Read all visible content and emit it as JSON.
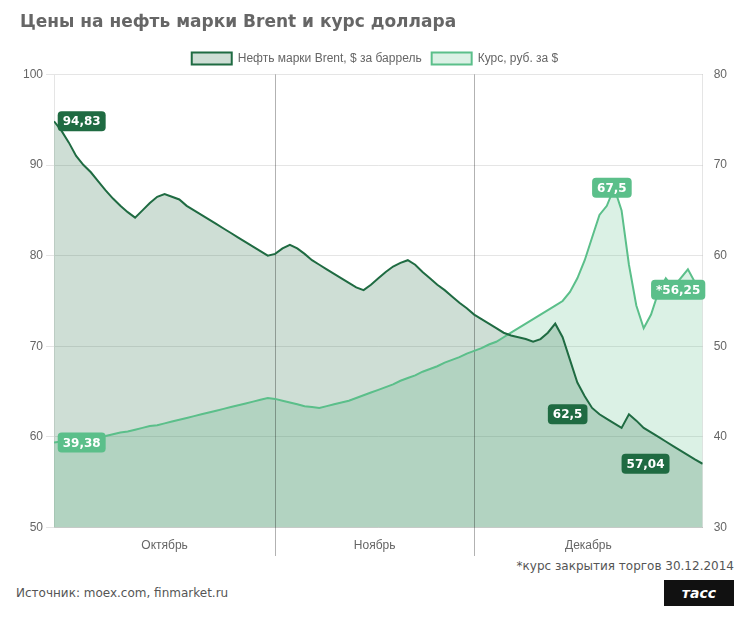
{
  "chart_data": {
    "type": "area",
    "title": "Цены на нефть марки Brent и курс доллара",
    "x": [
      0,
      1,
      2,
      3,
      4,
      5,
      6,
      7,
      8,
      9,
      10,
      11,
      12,
      13,
      14,
      15,
      16,
      17,
      18,
      19,
      20,
      21,
      22,
      23,
      24,
      25,
      26,
      27,
      28,
      29,
      30,
      31,
      32,
      33,
      34,
      35,
      36,
      37,
      38,
      39,
      40,
      41,
      42,
      43,
      44,
      45,
      46,
      47,
      48,
      49,
      50,
      51,
      52,
      53,
      54,
      55,
      56,
      57,
      58,
      59,
      60,
      61,
      62,
      63,
      64,
      65,
      66,
      67,
      68,
      69,
      70,
      71,
      72,
      73,
      74,
      75,
      76,
      77,
      78,
      79,
      80,
      81,
      82,
      83,
      84,
      85,
      86,
      87,
      88
    ],
    "series": [
      {
        "name": "Нефть марки Brent, $ за баррель",
        "color": "#1f6b42",
        "axis": "y",
        "values": [
          94.83,
          93.8,
          92.5,
          91.0,
          90.0,
          89.2,
          88.2,
          87.2,
          86.3,
          85.5,
          84.8,
          84.2,
          85.0,
          85.8,
          86.5,
          86.8,
          86.5,
          86.2,
          85.5,
          85.0,
          84.5,
          84.0,
          83.5,
          83.0,
          82.5,
          82.0,
          81.5,
          81.0,
          80.5,
          80.0,
          80.2,
          80.8,
          81.2,
          80.8,
          80.2,
          79.5,
          79.0,
          78.5,
          78.0,
          77.5,
          77.0,
          76.5,
          76.2,
          76.8,
          77.5,
          78.2,
          78.8,
          79.2,
          79.5,
          79.0,
          78.2,
          77.5,
          76.8,
          76.2,
          75.5,
          74.8,
          74.2,
          73.5,
          73.0,
          72.5,
          72.0,
          71.5,
          71.2,
          71.0,
          70.8,
          70.5,
          70.8,
          71.5,
          72.5,
          71.0,
          68.5,
          66.0,
          64.5,
          63.2,
          62.5,
          62.0,
          61.5,
          61.0,
          62.5,
          61.8,
          61.0,
          60.5,
          60.0,
          59.5,
          59.0,
          58.5,
          58.0,
          57.5,
          57.04
        ]
      },
      {
        "name": "Курс, руб. за $",
        "color": "#5bbf8a",
        "axis": "y2",
        "values": [
          39.38,
          39.5,
          39.6,
          39.7,
          39.8,
          39.9,
          40.0,
          40.1,
          40.3,
          40.5,
          40.6,
          40.8,
          41.0,
          41.2,
          41.3,
          41.5,
          41.7,
          41.9,
          42.1,
          42.3,
          42.5,
          42.7,
          42.9,
          43.1,
          43.3,
          43.5,
          43.7,
          43.9,
          44.1,
          44.3,
          44.2,
          44.0,
          43.8,
          43.6,
          43.4,
          43.3,
          43.2,
          43.4,
          43.6,
          43.8,
          44.0,
          44.3,
          44.6,
          44.9,
          45.2,
          45.5,
          45.8,
          46.2,
          46.5,
          46.8,
          47.2,
          47.5,
          47.8,
          48.2,
          48.5,
          48.8,
          49.2,
          49.5,
          49.8,
          50.2,
          50.5,
          51.0,
          51.5,
          52.0,
          52.5,
          53.0,
          53.5,
          54.0,
          54.5,
          55.0,
          56.0,
          57.5,
          59.5,
          62.0,
          64.5,
          65.5,
          67.5,
          65.0,
          59.0,
          54.5,
          52.0,
          53.5,
          56.0,
          57.5,
          56.5,
          57.5,
          58.5,
          57.0,
          56.25
        ]
      }
    ],
    "xlim": [
      0,
      88
    ],
    "xticks": [
      {
        "value": 15,
        "label": "Октябрь"
      },
      {
        "value": 43.5,
        "label": "Ноябрь"
      },
      {
        "value": 72.5,
        "label": "Декабрь"
      }
    ],
    "dividers": [
      30,
      57
    ],
    "ylim": [
      50,
      100
    ],
    "yticks": [
      50,
      60,
      70,
      80,
      90,
      100
    ],
    "y2lim": [
      30,
      80
    ],
    "y2ticks": [
      30,
      40,
      50,
      60,
      70,
      80
    ],
    "grid": "y",
    "legend": "top",
    "annotations": [
      {
        "text": "94,83",
        "x": 0.5,
        "y": 94.83,
        "axis": "y"
      },
      {
        "text": "62,5",
        "x": 67,
        "y": 62.5,
        "axis": "y"
      },
      {
        "text": "57,04",
        "x": 77,
        "y": 57.04,
        "axis": "y"
      },
      {
        "text": "39,38",
        "x": 0.5,
        "y": 39.38,
        "axis": "y2"
      },
      {
        "text": "67,5",
        "x": 73,
        "y": 67.5,
        "axis": "y2"
      },
      {
        "text": "*56,25",
        "x": 81,
        "y": 56.25,
        "axis": "y2"
      }
    ],
    "footnote": "*курс закрытия торгов 30.12.2014",
    "source": "Источник: moex.com, finmarket.ru",
    "logo": "тасс"
  }
}
